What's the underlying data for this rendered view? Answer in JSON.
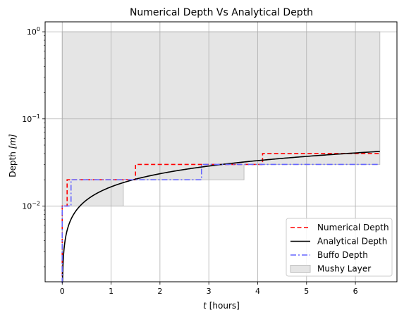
{
  "chart_data": {
    "type": "line",
    "title": "Numerical Depth Vs Analytical Depth",
    "xlabel_var": "t",
    "xlabel_unit": "[hours]",
    "ylabel": "Depth",
    "ylabel_unit": "[m]",
    "xlim": [
      -0.35,
      6.85
    ],
    "ylim": [
      0.00135,
      1.3
    ],
    "yscale": "log",
    "grid": true,
    "legend_position": "lower-right",
    "x_ticks": [
      0,
      1,
      2,
      3,
      4,
      5,
      6
    ],
    "x_tick_labels": [
      "0",
      "1",
      "2",
      "3",
      "4",
      "5",
      "6"
    ],
    "y_ticks": [
      0.01,
      0.1,
      1
    ],
    "y_tick_labels": [
      {
        "base": "10",
        "exp": "−2"
      },
      {
        "base": "10",
        "exp": "−1"
      },
      {
        "base": "10",
        "exp": "0"
      }
    ],
    "series": [
      {
        "name": "Numerical Depth",
        "color": "#ff0000",
        "style": "dashed",
        "steps": [
          [
            0.0,
            0.0013
          ],
          [
            0.0,
            0.01
          ],
          [
            0.1,
            0.01
          ],
          [
            0.1,
            0.02
          ],
          [
            1.5,
            0.02
          ],
          [
            1.5,
            0.03
          ],
          [
            4.1,
            0.03
          ],
          [
            4.1,
            0.04
          ],
          [
            6.5,
            0.04
          ]
        ]
      },
      {
        "name": "Analytical Depth",
        "color": "#000000",
        "style": "solid",
        "func": {
          "k": 0.0166,
          "x_start": 0.0,
          "x_end": 6.5
        }
      },
      {
        "name": "Buffo Depth",
        "color": "#6666ff",
        "style": "dashdot",
        "steps": [
          [
            0.0,
            0.0013
          ],
          [
            0.0,
            0.01
          ],
          [
            0.18,
            0.01
          ],
          [
            0.18,
            0.02
          ],
          [
            2.85,
            0.02
          ],
          [
            2.85,
            0.03
          ],
          [
            6.5,
            0.03
          ]
        ]
      },
      {
        "name": "Mushy Layer",
        "color": "#e5e5e5",
        "edge": "#bfbfbf",
        "style": "area",
        "upper": 1.0,
        "lower_steps": [
          [
            0.0,
            0.0013
          ],
          [
            0.0,
            0.01
          ],
          [
            1.25,
            0.01
          ],
          [
            1.25,
            0.02
          ],
          [
            3.72,
            0.02
          ],
          [
            3.72,
            0.03
          ],
          [
            6.5,
            0.03
          ]
        ]
      }
    ]
  }
}
